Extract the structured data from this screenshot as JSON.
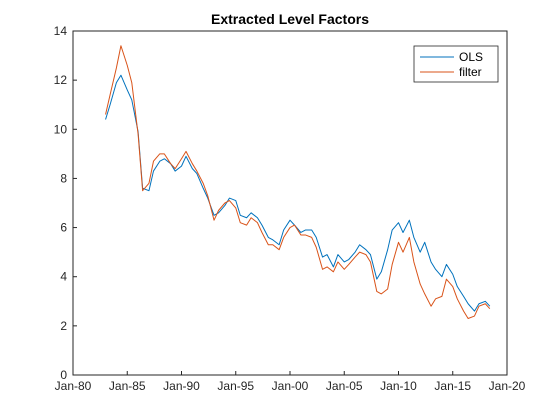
{
  "chart_data": {
    "type": "line",
    "title": "Extracted Level Factors",
    "xlabel": "",
    "ylabel": "",
    "x_axis_kind": "date",
    "xlim": [
      "1980-01-01",
      "2020-01-01"
    ],
    "ylim": [
      0,
      14
    ],
    "x_ticks": [
      "Jan-80",
      "Jan-85",
      "Jan-90",
      "Jan-95",
      "Jan-00",
      "Jan-05",
      "Jan-10",
      "Jan-15",
      "Jan-20"
    ],
    "y_ticks": [
      0,
      2,
      4,
      6,
      8,
      10,
      12,
      14
    ],
    "legend_position": "top-right",
    "grid": false,
    "x": [
      "1983-01",
      "1983-06",
      "1984-01",
      "1984-06",
      "1985-01",
      "1985-06",
      "1986-01",
      "1986-06",
      "1987-01",
      "1987-06",
      "1988-01",
      "1988-06",
      "1989-01",
      "1989-06",
      "1990-01",
      "1990-06",
      "1991-01",
      "1991-06",
      "1992-01",
      "1992-06",
      "1993-01",
      "1993-06",
      "1994-01",
      "1994-06",
      "1995-01",
      "1995-06",
      "1996-01",
      "1996-06",
      "1997-01",
      "1997-06",
      "1998-01",
      "1998-06",
      "1999-01",
      "1999-06",
      "2000-01",
      "2000-06",
      "2001-01",
      "2001-06",
      "2002-01",
      "2002-06",
      "2003-01",
      "2003-06",
      "2004-01",
      "2004-06",
      "2005-01",
      "2005-06",
      "2006-01",
      "2006-06",
      "2007-01",
      "2007-06",
      "2008-01",
      "2008-06",
      "2009-01",
      "2009-06",
      "2010-01",
      "2010-06",
      "2011-01",
      "2011-06",
      "2012-01",
      "2012-06",
      "2013-01",
      "2013-06",
      "2014-01",
      "2014-06",
      "2015-01",
      "2015-06",
      "2016-01",
      "2016-06",
      "2017-01",
      "2017-06",
      "2018-01",
      "2018-06"
    ],
    "series": [
      {
        "name": "OLS",
        "color": "#0072BD",
        "values": [
          10.4,
          11.0,
          11.9,
          12.2,
          11.6,
          11.2,
          9.9,
          7.6,
          7.5,
          8.3,
          8.7,
          8.8,
          8.6,
          8.3,
          8.5,
          8.9,
          8.4,
          8.2,
          7.6,
          7.2,
          6.5,
          6.6,
          6.9,
          7.2,
          7.1,
          6.5,
          6.4,
          6.6,
          6.4,
          6.1,
          5.6,
          5.5,
          5.3,
          5.9,
          6.3,
          6.1,
          5.8,
          5.9,
          5.9,
          5.6,
          4.8,
          4.9,
          4.4,
          4.9,
          4.6,
          4.7,
          5.0,
          5.3,
          5.1,
          4.9,
          3.9,
          4.2,
          5.1,
          5.9,
          6.2,
          5.8,
          6.3,
          5.6,
          5.0,
          5.4,
          4.6,
          4.3,
          4.0,
          4.5,
          4.1,
          3.6,
          3.2,
          2.9,
          2.6,
          2.9,
          3.0,
          2.8
        ]
      },
      {
        "name": "filter",
        "color": "#D95319",
        "values": [
          10.6,
          11.4,
          12.5,
          13.4,
          12.6,
          11.9,
          9.8,
          7.5,
          7.8,
          8.7,
          9.0,
          9.0,
          8.6,
          8.4,
          8.8,
          9.1,
          8.6,
          8.3,
          7.8,
          7.3,
          6.3,
          6.7,
          7.0,
          7.1,
          6.8,
          6.2,
          6.1,
          6.4,
          6.2,
          5.8,
          5.3,
          5.3,
          5.1,
          5.6,
          6.0,
          6.1,
          5.7,
          5.7,
          5.6,
          5.2,
          4.3,
          4.4,
          4.2,
          4.6,
          4.3,
          4.5,
          4.8,
          5.0,
          4.9,
          4.6,
          3.4,
          3.3,
          3.5,
          4.5,
          5.4,
          5.0,
          5.6,
          4.6,
          3.7,
          3.3,
          2.8,
          3.1,
          3.2,
          3.9,
          3.6,
          3.1,
          2.6,
          2.3,
          2.4,
          2.8,
          2.9,
          2.7
        ]
      }
    ]
  }
}
